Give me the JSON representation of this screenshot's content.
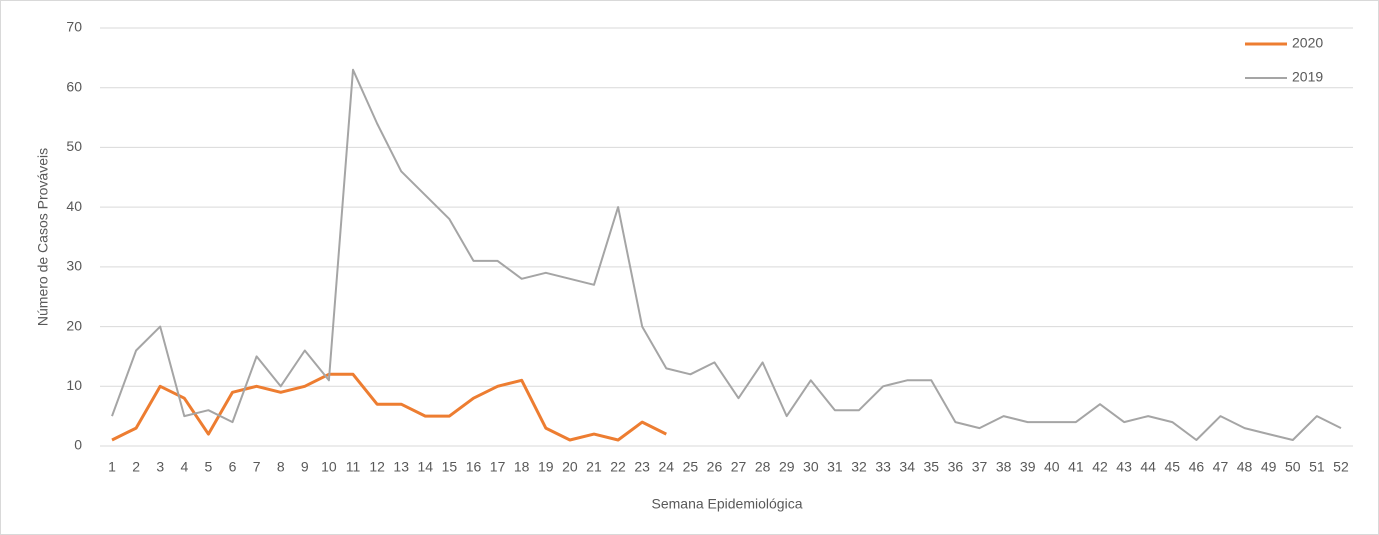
{
  "chart_data": {
    "type": "line",
    "y_label": "Número de Casos Prováveis",
    "x_label": "Semana Epidemiológica",
    "categories": [
      "1",
      "2",
      "3",
      "4",
      "5",
      "6",
      "7",
      "8",
      "9",
      "10",
      "11",
      "12",
      "13",
      "14",
      "15",
      "16",
      "17",
      "18",
      "19",
      "20",
      "21",
      "22",
      "23",
      "24",
      "25",
      "26",
      "27",
      "28",
      "29",
      "30",
      "31",
      "32",
      "33",
      "34",
      "35",
      "36",
      "37",
      "38",
      "39",
      "40",
      "41",
      "42",
      "43",
      "44",
      "45",
      "46",
      "47",
      "48",
      "49",
      "50",
      "51",
      "52"
    ],
    "series": [
      {
        "name": "2020",
        "color": "#ed7d31",
        "width": 3,
        "values": [
          1,
          3,
          10,
          8,
          2,
          9,
          10,
          9,
          10,
          12,
          12,
          7,
          7,
          5,
          5,
          8,
          10,
          11,
          3,
          1,
          2,
          1,
          4,
          2,
          null,
          null,
          null,
          null,
          null,
          null,
          null,
          null,
          null,
          null,
          null,
          null,
          null,
          null,
          null,
          null,
          null,
          null,
          null,
          null,
          null,
          null,
          null,
          null,
          null,
          null,
          null,
          null
        ]
      },
      {
        "name": "2019",
        "color": "#a5a5a5",
        "width": 2,
        "values": [
          5,
          16,
          20,
          5,
          6,
          4,
          15,
          10,
          16,
          11,
          63,
          54,
          46,
          42,
          38,
          31,
          31,
          28,
          29,
          28,
          27,
          40,
          20,
          13,
          12,
          14,
          8,
          14,
          5,
          11,
          6,
          6,
          10,
          11,
          11,
          4,
          3,
          5,
          4,
          4,
          4,
          7,
          4,
          5,
          4,
          1,
          5,
          3,
          2,
          1,
          5,
          3
        ]
      }
    ],
    "ylim": [
      0,
      70
    ],
    "yticks": [
      0,
      10,
      20,
      30,
      40,
      50,
      60,
      70
    ],
    "grid": true,
    "legend": "top-right"
  }
}
